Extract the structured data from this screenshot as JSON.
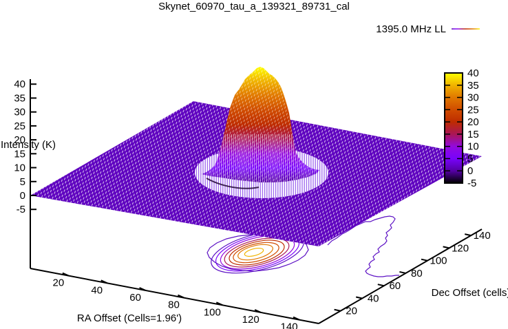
{
  "title": "Skynet_60970_tau_a_139321_89731_cal",
  "legend": {
    "label": "1395.0 MHz LL"
  },
  "axes": {
    "x": {
      "label": "RA Offset (Cells=1.96')",
      "ticks": [
        "20",
        "40",
        "60",
        "80",
        "100",
        "120",
        "140"
      ],
      "range": [
        0,
        150
      ]
    },
    "y": {
      "label": "Dec Offset (cells)",
      "ticks": [
        "20",
        "40",
        "60",
        "80",
        "100",
        "120",
        "140"
      ],
      "range": [
        0,
        150
      ]
    },
    "z": {
      "label": "Intensity (K)",
      "ticks": [
        "-5",
        "0",
        "5",
        "10",
        "15",
        "20",
        "25",
        "30",
        "35",
        "40"
      ],
      "range": [
        -5,
        40
      ]
    }
  },
  "colorbar": {
    "ticks": [
      "-5",
      "0",
      "5",
      "10",
      "15",
      "20",
      "25",
      "30",
      "35",
      "40"
    ],
    "min": -5,
    "max": 40
  },
  "colors": {
    "background": "#ffffff",
    "axis": "#000000",
    "plane_fill": "#6005c0",
    "mesh_hatch": "#ffffff",
    "moat_stripe": "#7a30e8",
    "moat_shadow": "#240838",
    "palette_stops": [
      {
        "v": -5,
        "c": "#000000"
      },
      {
        "v": 0,
        "c": "#5500a4"
      },
      {
        "v": 5,
        "c": "#7803fb"
      },
      {
        "v": 10,
        "c": "#9309dd"
      },
      {
        "v": 15,
        "c": "#aa1657"
      },
      {
        "v": 20,
        "c": "#be2c00"
      },
      {
        "v": 25,
        "c": "#d04c00"
      },
      {
        "v": 30,
        "c": "#e17800"
      },
      {
        "v": 35,
        "c": "#f0b300"
      },
      {
        "v": 40,
        "c": "#ffff00"
      }
    ]
  },
  "chart_data": {
    "type": "3d_surface",
    "title": "Skynet_60970_tau_a_139321_89731_cal",
    "series": [
      {
        "name": "1395.0 MHz LL",
        "style": "pm3d palette-mapped wireframe surface with contours projected on base"
      }
    ],
    "xlabel": "RA Offset (Cells=1.96')",
    "ylabel": "Dec Offset (cells)",
    "zlabel": "Intensity (K)",
    "xlim": [
      0,
      150
    ],
    "ylim": [
      0,
      150
    ],
    "zlim": [
      -5,
      40
    ],
    "grid": false,
    "legend_position": "top-right",
    "surface": {
      "baseline_intensity_K": 0,
      "peak_intensity_K": 40,
      "peak_center": {
        "ra_cells": 82,
        "dec_cells": 72
      },
      "peak_fwhm_cells": 22,
      "depression_ring": "shallow moat ring around the central peak at ~0 K",
      "noise_level_K": 1
    },
    "contours": {
      "levels_K": [
        0,
        5,
        10,
        15,
        20,
        25,
        30,
        35
      ],
      "projected_on": "base plane",
      "main_blob_center": {
        "ra_cells": 82,
        "dec_cells": 72
      },
      "outer_contour_radius_cells": 24,
      "noise_contour": "open wandering 0 K contour at high RA, dec ~70-140"
    }
  }
}
